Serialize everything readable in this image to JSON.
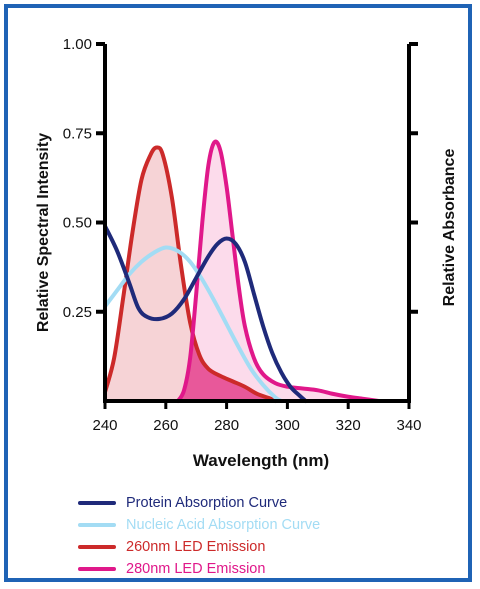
{
  "chart_data": {
    "type": "line",
    "title": "",
    "xlabel": "Wavelength (nm)",
    "ylabel": "Relative Spectral Intensity",
    "y2label": "Relative Absorbance",
    "xlim": [
      240,
      340
    ],
    "ylim": [
      0,
      1.0
    ],
    "x_ticks": [
      "240",
      "260",
      "280",
      "300",
      "320",
      "340"
    ],
    "y_ticks": [
      "0.25",
      "0.50",
      "0.75",
      "1.00"
    ],
    "y_tick_values": [
      0.25,
      0.5,
      0.75,
      1.0
    ],
    "x_tick_values": [
      240,
      260,
      280,
      300,
      320,
      340
    ],
    "legend_position": "bottom",
    "grid": false,
    "series": [
      {
        "name": "Protein Absorption Curve",
        "color": "#1f2a7a",
        "fill": "none",
        "points": [
          [
            240,
            0.49
          ],
          [
            244,
            0.42
          ],
          [
            248,
            0.33
          ],
          [
            251,
            0.26
          ],
          [
            254,
            0.235
          ],
          [
            258,
            0.23
          ],
          [
            262,
            0.245
          ],
          [
            266,
            0.285
          ],
          [
            270,
            0.345
          ],
          [
            274,
            0.405
          ],
          [
            277,
            0.44
          ],
          [
            280,
            0.455
          ],
          [
            283,
            0.44
          ],
          [
            286,
            0.39
          ],
          [
            289,
            0.3
          ],
          [
            292,
            0.21
          ],
          [
            295,
            0.135
          ],
          [
            298,
            0.08
          ],
          [
            301,
            0.04
          ],
          [
            304,
            0.015
          ],
          [
            306,
            0.0
          ]
        ]
      },
      {
        "name": "Nucleic Acid Absorption Curve",
        "color": "#a3dcf4",
        "fill": "none",
        "points": [
          [
            240,
            0.265
          ],
          [
            244,
            0.31
          ],
          [
            248,
            0.355
          ],
          [
            252,
            0.39
          ],
          [
            256,
            0.415
          ],
          [
            260,
            0.43
          ],
          [
            264,
            0.42
          ],
          [
            268,
            0.39
          ],
          [
            272,
            0.34
          ],
          [
            276,
            0.28
          ],
          [
            280,
            0.215
          ],
          [
            284,
            0.15
          ],
          [
            288,
            0.09
          ],
          [
            292,
            0.045
          ],
          [
            296,
            0.01
          ],
          [
            298,
            0.0
          ]
        ]
      },
      {
        "name": "260nm LED Emission",
        "color": "#cc2a2a",
        "fill": "#f6d3d6",
        "points": [
          [
            240,
            0.025
          ],
          [
            243,
            0.12
          ],
          [
            246,
            0.29
          ],
          [
            249,
            0.47
          ],
          [
            252,
            0.62
          ],
          [
            255,
            0.69
          ],
          [
            257,
            0.71
          ],
          [
            259,
            0.69
          ],
          [
            262,
            0.57
          ],
          [
            265,
            0.38
          ],
          [
            268,
            0.22
          ],
          [
            271,
            0.13
          ],
          [
            274,
            0.09
          ],
          [
            278,
            0.07
          ],
          [
            282,
            0.055
          ],
          [
            286,
            0.04
          ],
          [
            290,
            0.02
          ],
          [
            294,
            0.008
          ],
          [
            296,
            0.0
          ]
        ]
      },
      {
        "name": "280nm LED Emission",
        "color": "#e0188a",
        "fill": "#fbd5e8",
        "points": [
          [
            264,
            0.0
          ],
          [
            266,
            0.03
          ],
          [
            268,
            0.12
          ],
          [
            270,
            0.3
          ],
          [
            272,
            0.5
          ],
          [
            274,
            0.66
          ],
          [
            276,
            0.725
          ],
          [
            278,
            0.7
          ],
          [
            280,
            0.6
          ],
          [
            282,
            0.46
          ],
          [
            284,
            0.32
          ],
          [
            286,
            0.21
          ],
          [
            289,
            0.12
          ],
          [
            292,
            0.075
          ],
          [
            296,
            0.05
          ],
          [
            300,
            0.04
          ],
          [
            305,
            0.035
          ],
          [
            310,
            0.03
          ],
          [
            315,
            0.02
          ],
          [
            320,
            0.012
          ],
          [
            325,
            0.006
          ],
          [
            330,
            0.0
          ]
        ]
      }
    ],
    "overlap_fill": "#e8589a"
  },
  "legend": [
    {
      "label": "Protein Absorption Curve",
      "color": "#1f2a7a"
    },
    {
      "label": "Nucleic Acid Absorption Curve",
      "color": "#a3dcf4"
    },
    {
      "label": "260nm LED Emission",
      "color": "#cc2a2a"
    },
    {
      "label": "280nm LED Emission",
      "color": "#e0188a"
    }
  ]
}
